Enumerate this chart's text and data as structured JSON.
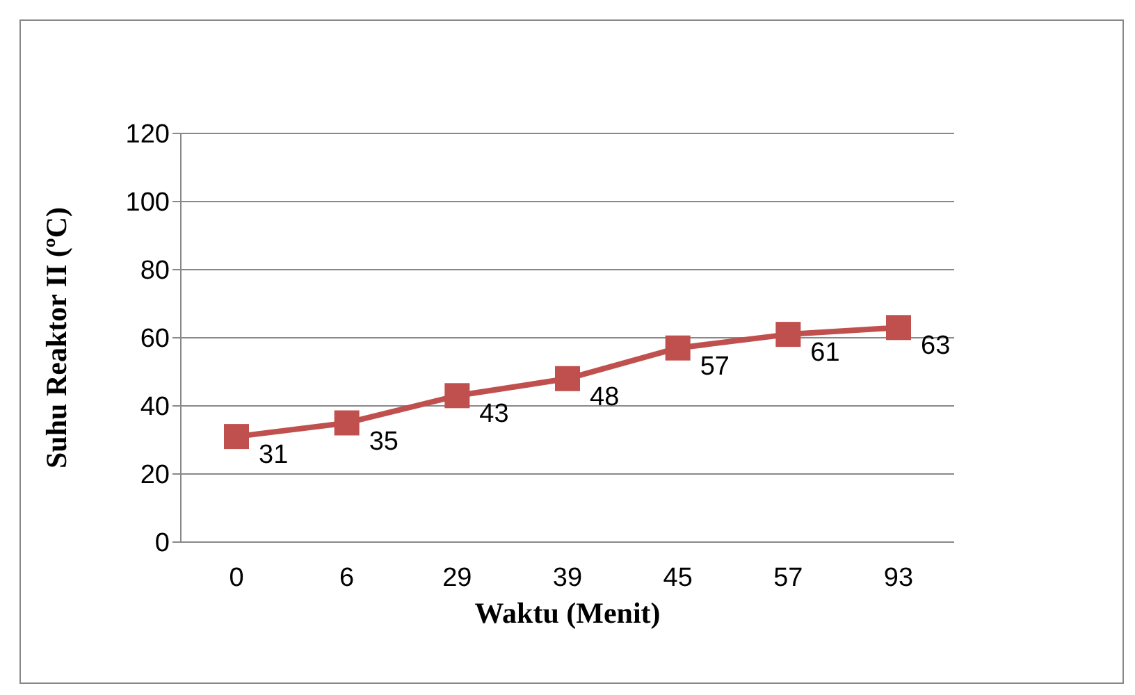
{
  "chart_data": {
    "type": "line",
    "xlabel": "Waktu (Menit)",
    "ylabel": "Suhu Reaktor II (ºC)",
    "categories": [
      "0",
      "6",
      "29",
      "39",
      "45",
      "57",
      "93"
    ],
    "series": [
      {
        "color": "#c0504d",
        "values": [
          31,
          35,
          43,
          48,
          57,
          61,
          63
        ]
      }
    ],
    "ylim": [
      0,
      120
    ],
    "yticks": [
      0,
      20,
      40,
      60,
      80,
      100,
      120
    ],
    "grid": "y",
    "marker": "square",
    "line_style": "solid",
    "data_labels": true,
    "legend": false
  }
}
